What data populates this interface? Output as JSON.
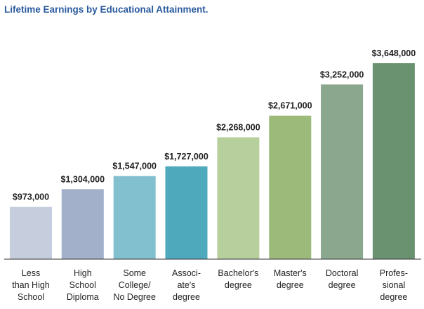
{
  "chart_data": {
    "type": "bar",
    "title": "Lifetime Earnings by Educational Attainment.",
    "categories": [
      [
        "Less",
        "than High",
        "School"
      ],
      [
        "High",
        "School",
        "Diploma"
      ],
      [
        "Some",
        "College/",
        "No Degree"
      ],
      [
        "Associ-",
        "ate's",
        "degree"
      ],
      [
        "Bachelor's",
        "degree"
      ],
      [
        "Master's",
        "degree"
      ],
      [
        "Doctoral",
        "degree"
      ],
      [
        "Profes-",
        "sional",
        "degree"
      ]
    ],
    "values": [
      973000,
      1304000,
      1547000,
      1727000,
      2268000,
      2671000,
      3252000,
      3648000
    ],
    "value_labels": [
      "$973,000",
      "$1,304,000",
      "$1,547,000",
      "$1,727,000",
      "$2,268,000",
      "$2,671,000",
      "$3,252,000",
      "$3,648,000"
    ],
    "colors": [
      "#c6cede",
      "#a3b0c9",
      "#83c0cf",
      "#4fa9bd",
      "#b7cf9c",
      "#9cbb7a",
      "#8ba88e",
      "#6b9270"
    ],
    "ylim": [
      0,
      3648000
    ],
    "grid": false,
    "xlabel": "",
    "ylabel": ""
  }
}
